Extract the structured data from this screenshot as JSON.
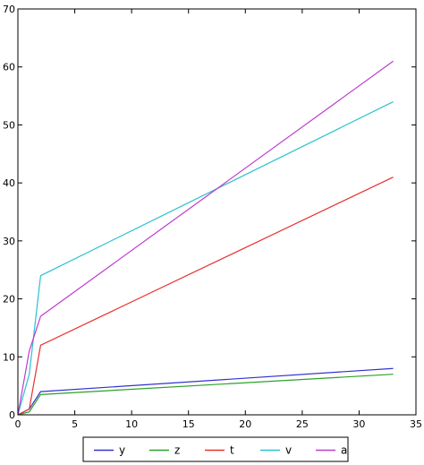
{
  "chart_data": {
    "type": "line",
    "x": [
      0,
      1,
      2,
      33
    ],
    "xlim": [
      0,
      35
    ],
    "ylim": [
      0,
      70
    ],
    "xticks": [
      0,
      5,
      10,
      15,
      20,
      25,
      30,
      35
    ],
    "yticks": [
      0,
      10,
      20,
      30,
      40,
      50,
      60,
      70
    ],
    "grid": false,
    "legend_position": "bottom-center",
    "series": [
      {
        "name": "y",
        "color": "#3333cc",
        "values": [
          0,
          1,
          4,
          8
        ]
      },
      {
        "name": "z",
        "color": "#2ca02c",
        "values": [
          0,
          0.5,
          3.5,
          7
        ]
      },
      {
        "name": "t",
        "color": "#e8312f",
        "values": [
          0,
          1,
          12,
          41
        ]
      },
      {
        "name": "v",
        "color": "#2bc1cf",
        "values": [
          0,
          7,
          24,
          54
        ]
      },
      {
        "name": "a",
        "color": "#bf3bcf",
        "values": [
          0,
          11,
          17,
          61
        ]
      }
    ]
  }
}
